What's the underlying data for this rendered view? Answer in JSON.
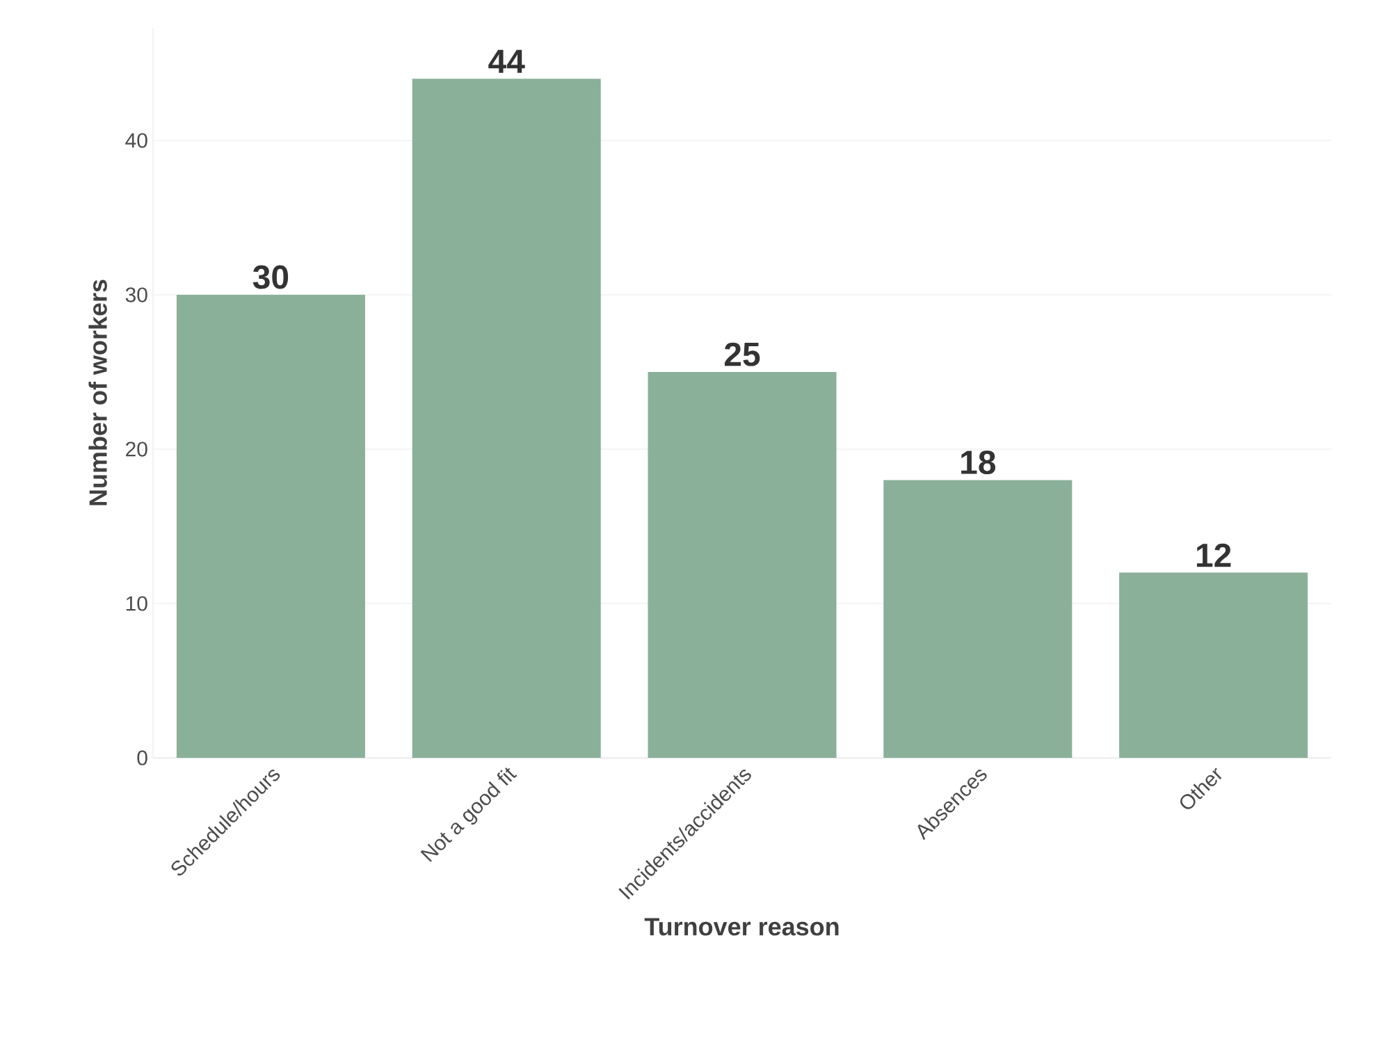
{
  "chart_data": {
    "type": "bar",
    "xlabel": "Turnover reason",
    "ylabel": "Number of workers",
    "categories": [
      "Schedule/hours",
      "Not a good fit",
      "Incidents/accidents",
      "Absences",
      "Other"
    ],
    "values": [
      30,
      44,
      25,
      18,
      12
    ],
    "color": "#8bb09a",
    "ylim": [
      0,
      47.3
    ],
    "yticks": [
      0,
      10,
      20,
      30,
      40
    ],
    "grid": "y",
    "data_labels": true
  }
}
